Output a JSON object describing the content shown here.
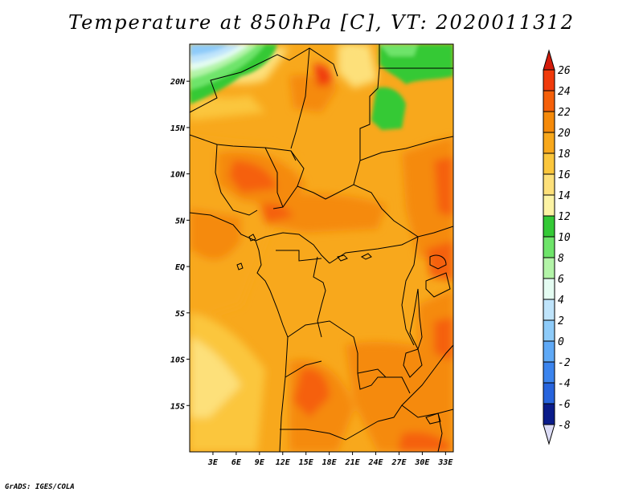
{
  "title": "Temperature at 850hPa [C], VT: 2020011312",
  "footer": "GrADS: IGES/COLA",
  "map": {
    "variable": "Temperature at 850hPa",
    "units": "C",
    "valid_time": "2020011312",
    "lon_range": [
      0,
      34
    ],
    "lat_range": [
      -20,
      24
    ],
    "lon_ticks": [
      {
        "value": 3,
        "label": "3E"
      },
      {
        "value": 6,
        "label": "6E"
      },
      {
        "value": 9,
        "label": "9E"
      },
      {
        "value": 12,
        "label": "12E"
      },
      {
        "value": 15,
        "label": "15E"
      },
      {
        "value": 18,
        "label": "18E"
      },
      {
        "value": 21,
        "label": "21E"
      },
      {
        "value": 24,
        "label": "24E"
      },
      {
        "value": 27,
        "label": "27E"
      },
      {
        "value": 30,
        "label": "30E"
      },
      {
        "value": 33,
        "label": "33E"
      }
    ],
    "lat_ticks": [
      {
        "value": 20,
        "label": "20N"
      },
      {
        "value": 15,
        "label": "15N"
      },
      {
        "value": 10,
        "label": "10N"
      },
      {
        "value": 5,
        "label": "5N"
      },
      {
        "value": 0,
        "label": "EQ"
      },
      {
        "value": -5,
        "label": "5S"
      },
      {
        "value": -10,
        "label": "10S"
      },
      {
        "value": -15,
        "label": "15S"
      }
    ]
  },
  "colorbar": {
    "levels": [
      26,
      24,
      22,
      20,
      18,
      16,
      14,
      12,
      10,
      8,
      6,
      4,
      2,
      0,
      -2,
      -4,
      -6,
      -8
    ],
    "labels": [
      "26",
      "24",
      "22",
      "20",
      "18",
      "16",
      "14",
      "12",
      "10",
      "8",
      "6",
      "4",
      "2",
      "0",
      "-2",
      "-4",
      "-6",
      "-8"
    ],
    "colors": [
      "#f03a0b",
      "#f5600a",
      "#f58a0a",
      "#f8a81c",
      "#fbc63c",
      "#fde07a",
      "#fcf3a4",
      "#34c936",
      "#6ee46a",
      "#b3f4a8",
      "#e4fcf2",
      "#bfe4fb",
      "#8ecbf9",
      "#5fa9f6",
      "#3b84ee",
      "#2764dd",
      "#1446c4",
      "#0a1c8a"
    ],
    "top_color": "#d41b0a",
    "bottom_color": "#dcdcf6"
  }
}
